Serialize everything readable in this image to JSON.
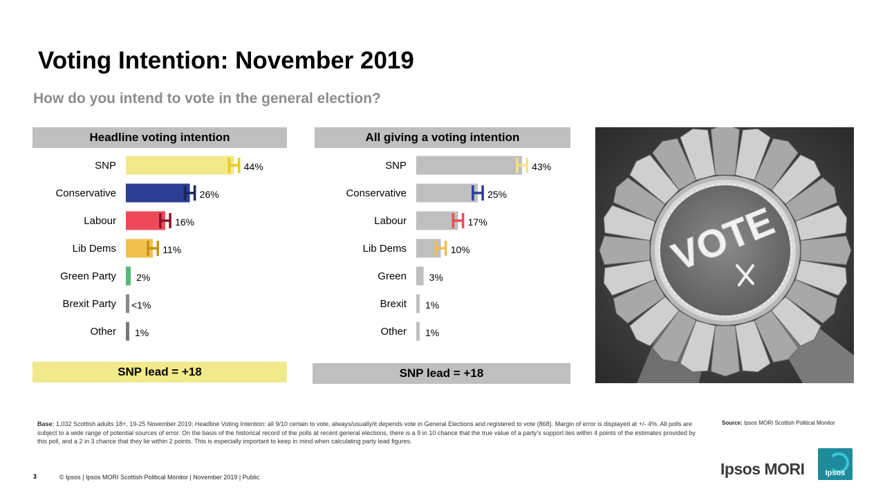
{
  "title": "Voting Intention: November 2019",
  "subtitle": "How do you intend to vote in the general election?",
  "chart_data": [
    {
      "type": "bar",
      "orientation": "horizontal",
      "title": "Headline voting intention",
      "categories": [
        "SNP",
        "Conservative",
        "Labour",
        "Lib Dems",
        "Green Party",
        "Brexit Party",
        "Other"
      ],
      "values": [
        44,
        26,
        16,
        11,
        2,
        0.3,
        1
      ],
      "value_labels": [
        "44%",
        "26%",
        "16%",
        "11%",
        "2%",
        "<1%",
        "1%"
      ],
      "margin_of_error": 4,
      "error_bars": true,
      "colors": [
        "#f2e98a",
        "#2c3e94",
        "#ee4a5a",
        "#f0c04f",
        "#55b87a",
        "#888888",
        "#777777"
      ],
      "error_bar_colors": [
        "#e8cc1a",
        "#17265e",
        "#8c1428",
        "#c98f1c",
        "",
        "",
        ""
      ],
      "xlim": [
        0,
        55
      ],
      "footer": "SNP lead = +18",
      "footer_color": "#f2e98a"
    },
    {
      "type": "bar",
      "orientation": "horizontal",
      "title": "All giving a voting intention",
      "categories": [
        "SNP",
        "Conservative",
        "Labour",
        "Lib Dems",
        "Green",
        "Brexit",
        "Other"
      ],
      "values": [
        43,
        25,
        17,
        10,
        3,
        1,
        1
      ],
      "value_labels": [
        "43%",
        "25%",
        "17%",
        "10%",
        "3%",
        "1%",
        "1%"
      ],
      "margin_of_error": 4,
      "error_bars": true,
      "colors": [
        "#bfbfbf",
        "#bfbfbf",
        "#bfbfbf",
        "#bfbfbf",
        "#bfbfbf",
        "#bfbfbf",
        "#bfbfbf"
      ],
      "error_bar_colors": [
        "#f2e38a",
        "#2c3e94",
        "#ee4a5a",
        "#f0c04f",
        "",
        "",
        ""
      ],
      "xlim": [
        0,
        55
      ],
      "footer": "SNP lead = +18",
      "footer_color": "#bfbfbf"
    }
  ],
  "image": {
    "rosette_text": "VOTE"
  },
  "notes": {
    "base_label": "Base:",
    "base_text": "1,032 Scottish adults 18+, 19-25 November 2019; Headline Voting Intention: all 9/10 certain to vote, always/usually/it depends vote in General Elections and registered to vote (868). Margin of error is displayed at +/- 4%. All polls are subject to a wide range of potential sources of error. On the basis of the historical record of the polls at recent general elections, there is a 9 in 10 chance that the true value of a party’s support lies within 4 points of the estimates provided by this poll, and a 2 in 3 chance that they lie within 2 points. This is especially important to keep in mind when calculating party lead figures.",
    "source_label": "Source:",
    "source_text": "Ipsos MORI Scottish Political Monitor"
  },
  "footer": {
    "slide_number": "3",
    "text": "© Ipsos | Ipsos MORI  Scottish Political Monitor | November 2019 | Public",
    "logo_text": "Ipsos MORI",
    "badge_text": "Ipsos"
  }
}
